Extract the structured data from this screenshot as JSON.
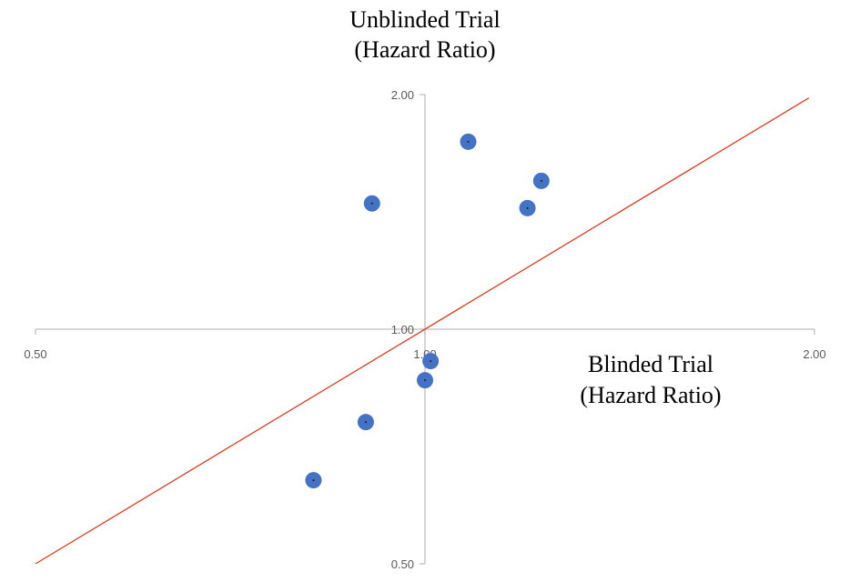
{
  "chart_data": {
    "type": "scatter",
    "x_scale": "log",
    "y_scale": "log",
    "x_axis_crosses_y_at": 1.0,
    "y_axis_crosses_x_at": 1.0,
    "xlim": [
      0.5,
      2.0
    ],
    "ylim": [
      0.5,
      2.0
    ],
    "xlabel": [
      "Blinded Trial",
      "(Hazard Ratio)"
    ],
    "ylabel": [
      "Unblinded Trial",
      "(Hazard Ratio)"
    ],
    "x_tick_labels": [
      "0.50",
      "1.00",
      "2.00"
    ],
    "y_tick_labels": [
      "2.00",
      "1.00",
      "0.50"
    ],
    "x_tick_values": [
      0.5,
      1.0,
      2.0
    ],
    "y_tick_values": [
      2.0,
      1.0,
      0.5
    ],
    "grid": false,
    "legend": "none",
    "reference_line": {
      "name": "line of equality",
      "x": [
        0.5,
        1.98
      ],
      "y": [
        0.5,
        1.98
      ],
      "color": "#e03a1f"
    },
    "marker_color": "#4472c4",
    "axis_color": "#bfbfbf",
    "points": [
      {
        "x": 1.08,
        "y": 1.74
      },
      {
        "x": 1.23,
        "y": 1.55
      },
      {
        "x": 0.91,
        "y": 1.45
      },
      {
        "x": 1.2,
        "y": 1.43
      },
      {
        "x": 1.01,
        "y": 0.91
      },
      {
        "x": 1.0,
        "y": 0.86
      },
      {
        "x": 0.9,
        "y": 0.76
      },
      {
        "x": 0.82,
        "y": 0.64
      }
    ]
  }
}
